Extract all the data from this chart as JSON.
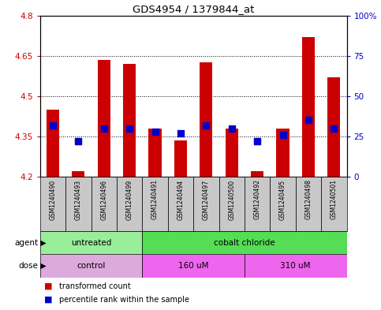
{
  "title": "GDS4954 / 1379844_at",
  "samples": [
    "GSM1240490",
    "GSM1240493",
    "GSM1240496",
    "GSM1240499",
    "GSM1240491",
    "GSM1240494",
    "GSM1240497",
    "GSM1240500",
    "GSM1240492",
    "GSM1240495",
    "GSM1240498",
    "GSM1240501"
  ],
  "transformed_counts": [
    4.45,
    4.22,
    4.635,
    4.62,
    4.38,
    4.335,
    4.625,
    4.38,
    4.22,
    4.38,
    4.72,
    4.57
  ],
  "percentile_ranks": [
    32,
    22,
    30,
    30,
    28,
    27,
    32,
    30,
    22,
    26,
    35,
    30
  ],
  "y_min": 4.2,
  "y_max": 4.8,
  "y_ticks": [
    4.2,
    4.35,
    4.5,
    4.65,
    4.8
  ],
  "y_tick_labels": [
    "4.2",
    "4.35",
    "4.5",
    "4.65",
    "4.8"
  ],
  "agent_groups": [
    {
      "label": "untreated",
      "start": 0,
      "end": 4,
      "color": "#99EE99"
    },
    {
      "label": "cobalt chloride",
      "start": 4,
      "end": 12,
      "color": "#55DD55"
    }
  ],
  "dose_groups": [
    {
      "label": "control",
      "start": 0,
      "end": 4,
      "color": "#DDAADD"
    },
    {
      "label": "160 uM",
      "start": 4,
      "end": 8,
      "color": "#EE66EE"
    },
    {
      "label": "310 uM",
      "start": 8,
      "end": 12,
      "color": "#EE66EE"
    }
  ],
  "bar_color": "#CC0000",
  "dot_color": "#0000CC",
  "tick_color_left": "#CC0000",
  "tick_color_right": "#0000CC",
  "bar_width": 0.5,
  "dot_size": 30,
  "gray_box_color": "#C8C8C8"
}
